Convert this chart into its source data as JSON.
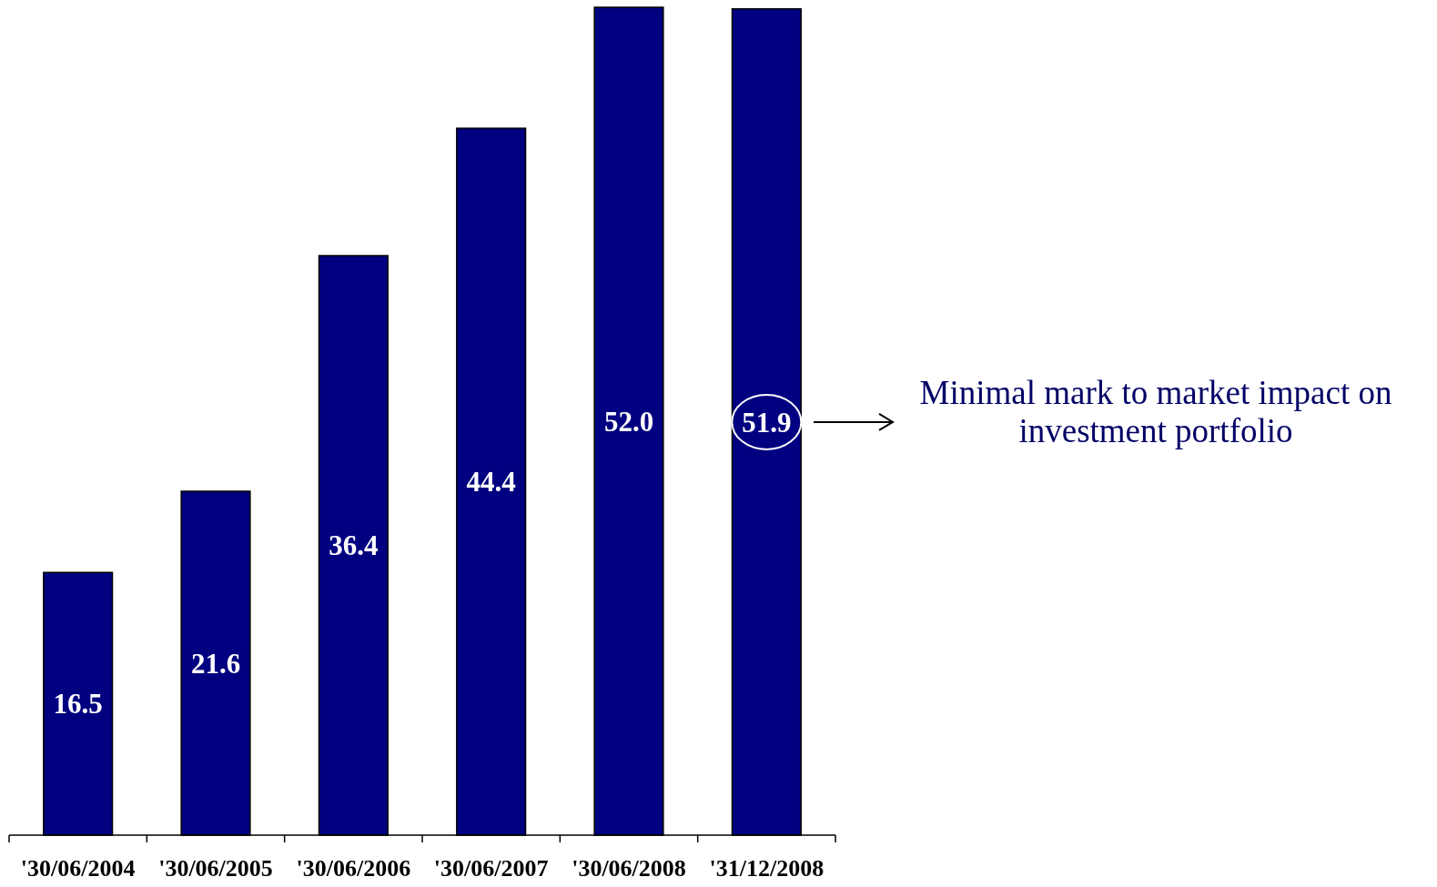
{
  "chart_data": {
    "type": "bar",
    "categories": [
      "'30/06/2004",
      "'30/06/2005",
      "'30/06/2006",
      "'30/06/2007",
      "'30/06/2008",
      "'31/12/2008"
    ],
    "values": [
      16.5,
      21.6,
      36.4,
      44.4,
      52.0,
      51.9
    ],
    "value_labels": [
      "16.5",
      "21.6",
      "36.4",
      "44.4",
      "52.0",
      "51.9"
    ],
    "color": "#000080",
    "annotations": [
      "Minimal mark to market impact on investment portfolio"
    ]
  }
}
